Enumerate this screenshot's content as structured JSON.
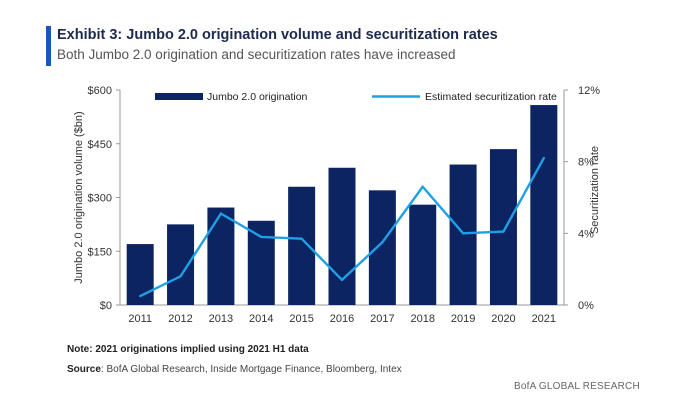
{
  "header": {
    "title": "Exhibit 3: Jumbo 2.0 origination volume and securitization rates",
    "subtitle": "Both Jumbo 2.0 origination and securitization rates have increased"
  },
  "footer": {
    "note": "Note: 2021 originations implied using 2021 H1 data",
    "source_label": "Source",
    "source_text": ": BofA Global Research, Inside Mortgage Finance, Bloomberg, Intex",
    "brand": "BofA GLOBAL RESEARCH"
  },
  "colors": {
    "bar": "#0c2461",
    "line": "#1ea0e6",
    "accent": "#1a56b8"
  },
  "chart_data": {
    "type": "bar",
    "categories": [
      "2011",
      "2012",
      "2013",
      "2014",
      "2015",
      "2016",
      "2017",
      "2018",
      "2019",
      "2020",
      "2021"
    ],
    "series": [
      {
        "name": "Jumbo 2.0 origination",
        "type": "bar",
        "axis": "left",
        "values": [
          170,
          225,
          272,
          235,
          330,
          383,
          320,
          280,
          392,
          435,
          558
        ]
      },
      {
        "name": "Estimated securitization rate",
        "type": "line",
        "axis": "right",
        "values": [
          0.5,
          1.6,
          5.1,
          3.8,
          3.7,
          1.4,
          3.5,
          6.6,
          4.0,
          4.1,
          8.2
        ]
      }
    ],
    "ylabel": "Jumbo 2.0 origination volume ($bn)",
    "y2label": "Securitization rate",
    "ylim": [
      0,
      600
    ],
    "y2lim": [
      0,
      12
    ],
    "yticks": [
      "$0",
      "$150",
      "$300",
      "$450",
      "$600"
    ],
    "y2ticks": [
      "0%",
      "4%",
      "8%",
      "12%"
    ],
    "legend_position": "top"
  }
}
